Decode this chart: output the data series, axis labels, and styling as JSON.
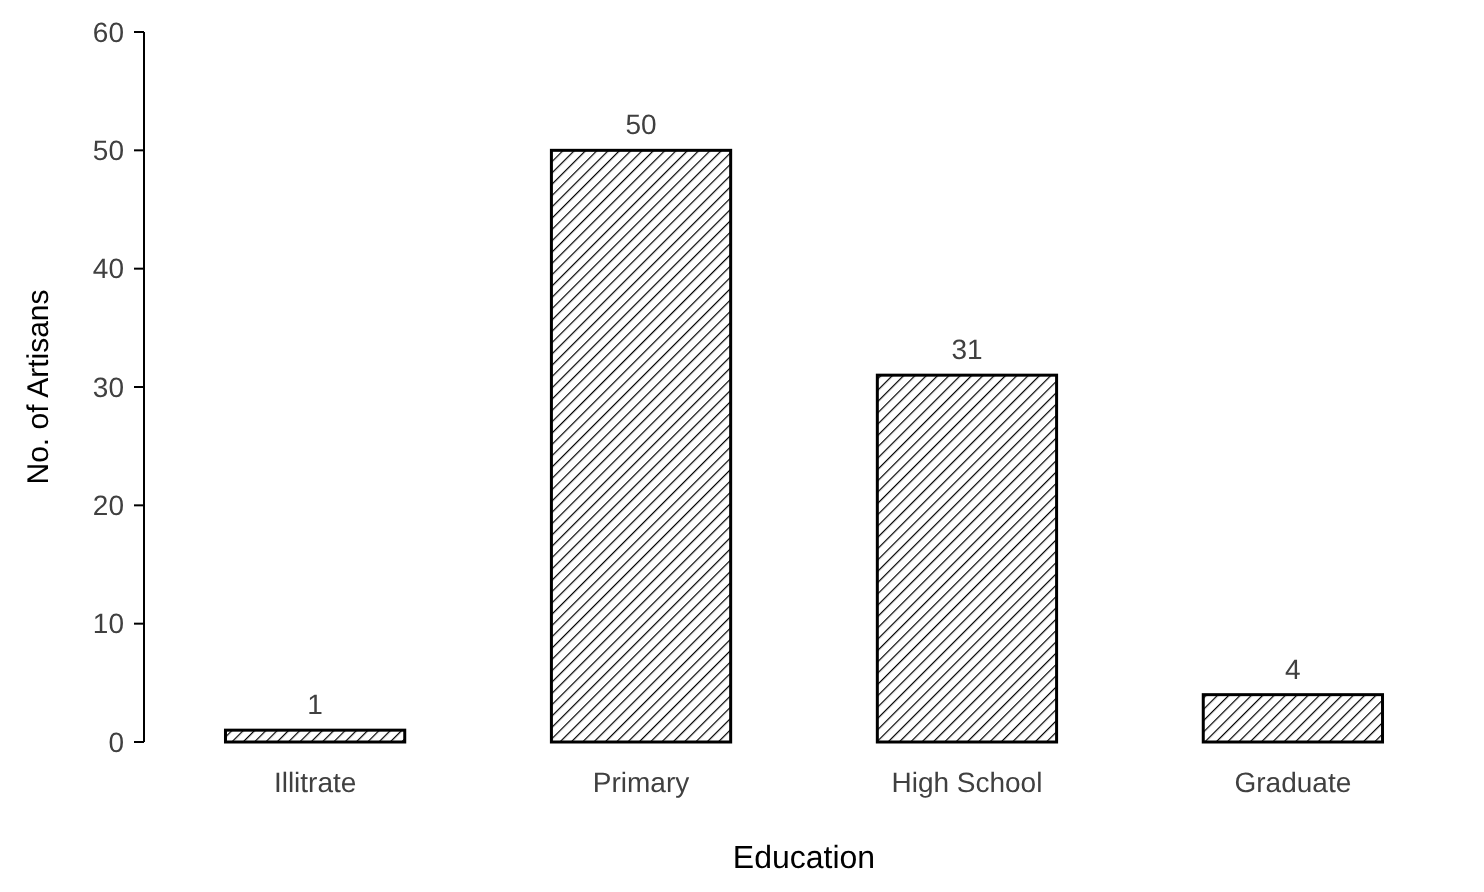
{
  "chart_data": {
    "type": "bar",
    "xlabel": "Education",
    "ylabel": "No. of Artisans",
    "categories": [
      "Illitrate",
      "Primary",
      "High School",
      "Graduate"
    ],
    "values": [
      1,
      50,
      31,
      4
    ],
    "color": "#000000",
    "ylim": [
      0,
      60
    ],
    "yticks": [
      0,
      10,
      20,
      30,
      40,
      50,
      60
    ],
    "grid": false,
    "data_labels": true
  }
}
